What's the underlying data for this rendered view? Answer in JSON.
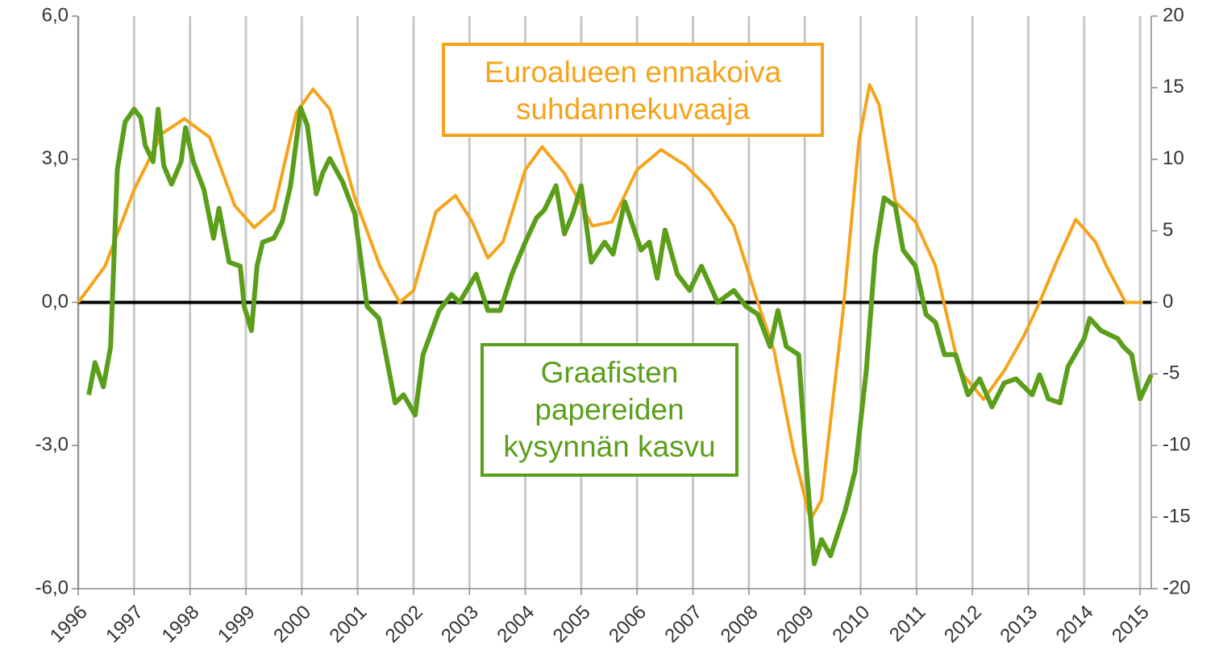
{
  "chart_data": {
    "type": "line",
    "xlim": [
      1996,
      2015.2
    ],
    "xticks": [
      1996,
      1997,
      1998,
      1999,
      2000,
      2001,
      2002,
      2003,
      2004,
      2005,
      2006,
      2007,
      2008,
      2009,
      2010,
      2011,
      2012,
      2013,
      2014,
      2015
    ],
    "ylim": [
      -6,
      6
    ],
    "yticks": [
      {
        "value": -6,
        "label": "-6,0"
      },
      {
        "value": -3,
        "label": "-3,0"
      },
      {
        "value": 0,
        "label": "0,0"
      },
      {
        "value": 3,
        "label": "3,0"
      },
      {
        "value": 6,
        "label": "6,0"
      }
    ],
    "y2lim": [
      -20,
      20
    ],
    "y2ticks": [
      -20,
      -15,
      -10,
      -5,
      0,
      5,
      10,
      15,
      20
    ],
    "grid": true,
    "series": [
      {
        "name": "Euroalueen ennakoiva suhdannekuvaaja",
        "color": "#f5a31a",
        "x": [
          1996.0,
          1996.48,
          1997.0,
          1997.5,
          1997.9,
          1998.35,
          1998.8,
          1999.15,
          1999.5,
          1999.9,
          2000.2,
          2000.5,
          2000.95,
          2001.4,
          2001.75,
          2002.0,
          2002.4,
          2002.75,
          2003.05,
          2003.33,
          2003.6,
          2004.0,
          2004.3,
          2004.7,
          2005.2,
          2005.55,
          2006.0,
          2006.43,
          2006.87,
          2007.3,
          2007.73,
          2008.16,
          2008.45,
          2008.8,
          2009.1,
          2009.3,
          2009.68,
          2009.97,
          2010.16,
          2010.33,
          2010.62,
          2010.98,
          2011.34,
          2011.77,
          2012.2,
          2012.57,
          2012.93,
          2013.2,
          2013.5,
          2013.85,
          2014.2,
          2014.4,
          2014.74,
          2015.05
        ],
        "values": [
          0,
          0.76,
          2.36,
          3.54,
          3.85,
          3.46,
          2.03,
          1.57,
          1.94,
          3.97,
          4.47,
          4.05,
          2.19,
          0.76,
          0,
          0.25,
          1.9,
          2.24,
          1.69,
          0.93,
          1.27,
          2.78,
          3.26,
          2.7,
          1.6,
          1.69,
          2.78,
          3.2,
          2.87,
          2.36,
          1.6,
          0,
          -1.01,
          -3.12,
          -4.56,
          -4.14,
          -0.25,
          3.38,
          4.56,
          4.14,
          2.11,
          1.69,
          0.76,
          -1.43,
          -2.03,
          -1.43,
          -0.68,
          0,
          0.84,
          1.74,
          1.27,
          0.76,
          0,
          0
        ]
      },
      {
        "name": "Graafisten papereiden kysynnän kasvu",
        "color": "#5a9e1a",
        "axis": "y2",
        "x": [
          1996.19,
          1996.3,
          1996.45,
          1996.58,
          1996.7,
          1996.84,
          1997.0,
          1997.12,
          1997.2,
          1997.34,
          1997.43,
          1997.53,
          1997.67,
          1997.84,
          1997.92,
          1998.06,
          1998.25,
          1998.42,
          1998.52,
          1998.7,
          1998.9,
          1998.97,
          1999.1,
          1999.2,
          1999.3,
          1999.5,
          1999.65,
          1999.8,
          1999.98,
          2000.1,
          2000.26,
          2000.37,
          2000.5,
          2000.73,
          2000.95,
          2001.17,
          2001.38,
          2001.67,
          2001.82,
          2002.03,
          2002.17,
          2002.46,
          2002.68,
          2002.82,
          2003.12,
          2003.33,
          2003.55,
          2003.76,
          2004.0,
          2004.2,
          2004.34,
          2004.55,
          2004.7,
          2004.85,
          2005.0,
          2005.18,
          2005.42,
          2005.57,
          2005.78,
          2006.07,
          2006.22,
          2006.36,
          2006.5,
          2006.72,
          2006.94,
          2007.15,
          2007.44,
          2007.73,
          2007.95,
          2008.16,
          2008.38,
          2008.52,
          2008.67,
          2008.89,
          2009.03,
          2009.17,
          2009.3,
          2009.46,
          2009.72,
          2009.9,
          2010.1,
          2010.26,
          2010.42,
          2010.62,
          2010.76,
          2010.98,
          2011.17,
          2011.34,
          2011.5,
          2011.7,
          2011.92,
          2012.13,
          2012.35,
          2012.57,
          2012.78,
          2013.07,
          2013.2,
          2013.36,
          2013.57,
          2013.71,
          2014.0,
          2014.1,
          2014.3,
          2014.6,
          2014.7,
          2014.85,
          2015.0,
          2015.2
        ],
        "values": [
          -6.46,
          -4.2,
          -5.9,
          -3.1,
          9.27,
          12.6,
          13.5,
          12.9,
          10.96,
          9.83,
          13.5,
          9.55,
          8.26,
          9.83,
          12.2,
          9.83,
          7.87,
          4.49,
          6.57,
          2.81,
          2.53,
          -0.28,
          -1.97,
          2.53,
          4.21,
          4.49,
          5.62,
          8.15,
          13.6,
          12.36,
          7.58,
          8.99,
          10.06,
          8.43,
          6.18,
          -0.28,
          -1.12,
          -7.02,
          -6.46,
          -7.87,
          -3.65,
          -0.56,
          0.56,
          0,
          1.97,
          -0.56,
          -0.56,
          1.97,
          4.21,
          5.9,
          6.46,
          8.15,
          4.78,
          6.18,
          8.15,
          2.81,
          4.21,
          3.37,
          7.02,
          3.65,
          4.21,
          1.69,
          5.06,
          1.97,
          0.84,
          2.53,
          0,
          0.84,
          -0.28,
          -0.84,
          -3.09,
          -0.56,
          -3.09,
          -3.65,
          -11.5,
          -18.26,
          -16.57,
          -17.7,
          -14.6,
          -11.8,
          -4.78,
          3.37,
          7.3,
          6.74,
          3.65,
          2.53,
          -0.84,
          -1.4,
          -3.65,
          -3.65,
          -6.46,
          -5.34,
          -7.3,
          -5.62,
          -5.34,
          -6.46,
          -5.06,
          -6.74,
          -7.02,
          -4.49,
          -2.53,
          -1.12,
          -1.97,
          -2.53,
          -3.09,
          -3.65,
          -6.74,
          -5.06
        ]
      }
    ]
  }
}
